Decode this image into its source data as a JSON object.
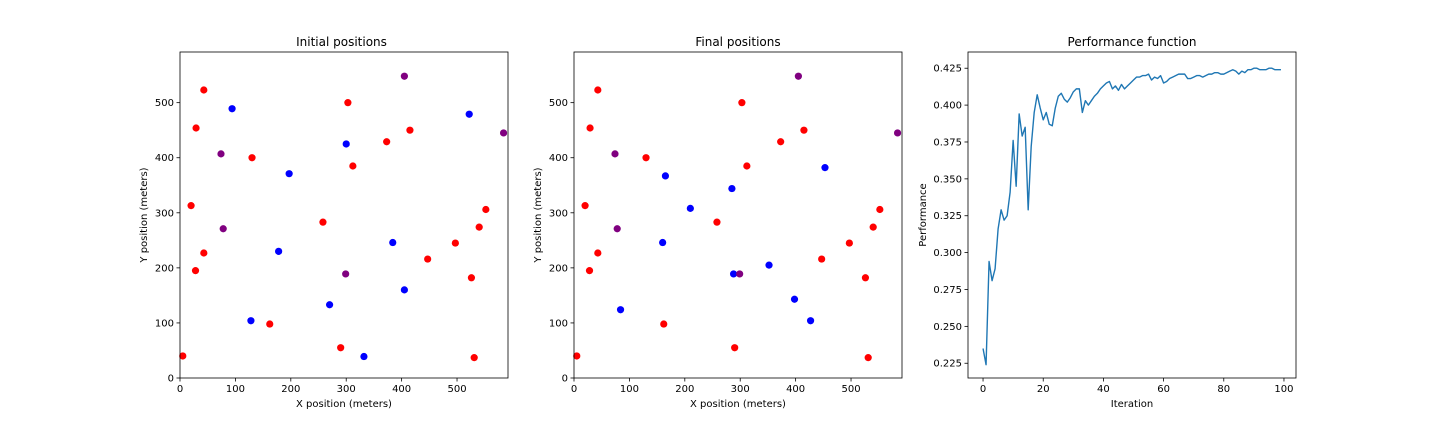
{
  "chart_data": [
    {
      "type": "scatter",
      "title": "Initial positions",
      "xlabel": "X position (meters)",
      "ylabel": "Y position (meters)",
      "xlim": [
        0,
        592
      ],
      "ylim": [
        0,
        592
      ],
      "xticks": [
        0,
        100,
        200,
        300,
        400,
        500
      ],
      "yticks": [
        0,
        100,
        200,
        300,
        400,
        500
      ],
      "points": [
        {
          "x": 5,
          "y": 40,
          "color": "#ff0000"
        },
        {
          "x": 20,
          "y": 313,
          "color": "#ff0000"
        },
        {
          "x": 28,
          "y": 195,
          "color": "#ff0000"
        },
        {
          "x": 29,
          "y": 454,
          "color": "#ff0000"
        },
        {
          "x": 43,
          "y": 523,
          "color": "#ff0000"
        },
        {
          "x": 43,
          "y": 227,
          "color": "#ff0000"
        },
        {
          "x": 74,
          "y": 407,
          "color": "#800080"
        },
        {
          "x": 78,
          "y": 271,
          "color": "#800080"
        },
        {
          "x": 94,
          "y": 489,
          "color": "#0000ff"
        },
        {
          "x": 128,
          "y": 104,
          "color": "#0000ff"
        },
        {
          "x": 130,
          "y": 400,
          "color": "#ff0000"
        },
        {
          "x": 162,
          "y": 98,
          "color": "#ff0000"
        },
        {
          "x": 178,
          "y": 230,
          "color": "#0000ff"
        },
        {
          "x": 197,
          "y": 371,
          "color": "#0000ff"
        },
        {
          "x": 258,
          "y": 283,
          "color": "#ff0000"
        },
        {
          "x": 270,
          "y": 133,
          "color": "#0000ff"
        },
        {
          "x": 290,
          "y": 55,
          "color": "#ff0000"
        },
        {
          "x": 299,
          "y": 189,
          "color": "#800080"
        },
        {
          "x": 300,
          "y": 425,
          "color": "#0000ff"
        },
        {
          "x": 303,
          "y": 500,
          "color": "#ff0000"
        },
        {
          "x": 312,
          "y": 385,
          "color": "#ff0000"
        },
        {
          "x": 332,
          "y": 39,
          "color": "#0000ff"
        },
        {
          "x": 373,
          "y": 429,
          "color": "#ff0000"
        },
        {
          "x": 384,
          "y": 246,
          "color": "#0000ff"
        },
        {
          "x": 405,
          "y": 548,
          "color": "#800080"
        },
        {
          "x": 405,
          "y": 160,
          "color": "#0000ff"
        },
        {
          "x": 415,
          "y": 450,
          "color": "#ff0000"
        },
        {
          "x": 447,
          "y": 216,
          "color": "#ff0000"
        },
        {
          "x": 497,
          "y": 245,
          "color": "#ff0000"
        },
        {
          "x": 522,
          "y": 479,
          "color": "#0000ff"
        },
        {
          "x": 526,
          "y": 182,
          "color": "#ff0000"
        },
        {
          "x": 531,
          "y": 37,
          "color": "#ff0000"
        },
        {
          "x": 540,
          "y": 274,
          "color": "#ff0000"
        },
        {
          "x": 552,
          "y": 306,
          "color": "#ff0000"
        },
        {
          "x": 584,
          "y": 445,
          "color": "#800080"
        }
      ]
    },
    {
      "type": "scatter",
      "title": "Final positions",
      "xlabel": "X position (meters)",
      "ylabel": "Y position (meters)",
      "xlim": [
        0,
        592
      ],
      "ylim": [
        0,
        592
      ],
      "xticks": [
        0,
        100,
        200,
        300,
        400,
        500
      ],
      "yticks": [
        0,
        100,
        200,
        300,
        400,
        500
      ],
      "points": [
        {
          "x": 5,
          "y": 40,
          "color": "#ff0000"
        },
        {
          "x": 20,
          "y": 313,
          "color": "#ff0000"
        },
        {
          "x": 28,
          "y": 195,
          "color": "#ff0000"
        },
        {
          "x": 29,
          "y": 454,
          "color": "#ff0000"
        },
        {
          "x": 43,
          "y": 523,
          "color": "#ff0000"
        },
        {
          "x": 43,
          "y": 227,
          "color": "#ff0000"
        },
        {
          "x": 74,
          "y": 407,
          "color": "#800080"
        },
        {
          "x": 78,
          "y": 271,
          "color": "#800080"
        },
        {
          "x": 84,
          "y": 124,
          "color": "#0000ff"
        },
        {
          "x": 130,
          "y": 400,
          "color": "#ff0000"
        },
        {
          "x": 160,
          "y": 246,
          "color": "#0000ff"
        },
        {
          "x": 162,
          "y": 98,
          "color": "#ff0000"
        },
        {
          "x": 165,
          "y": 367,
          "color": "#0000ff"
        },
        {
          "x": 210,
          "y": 308,
          "color": "#0000ff"
        },
        {
          "x": 258,
          "y": 283,
          "color": "#ff0000"
        },
        {
          "x": 285,
          "y": 344,
          "color": "#0000ff"
        },
        {
          "x": 288,
          "y": 189,
          "color": "#0000ff"
        },
        {
          "x": 290,
          "y": 55,
          "color": "#ff0000"
        },
        {
          "x": 299,
          "y": 189,
          "color": "#800080"
        },
        {
          "x": 303,
          "y": 500,
          "color": "#ff0000"
        },
        {
          "x": 312,
          "y": 385,
          "color": "#ff0000"
        },
        {
          "x": 352,
          "y": 205,
          "color": "#0000ff"
        },
        {
          "x": 373,
          "y": 429,
          "color": "#ff0000"
        },
        {
          "x": 398,
          "y": 143,
          "color": "#0000ff"
        },
        {
          "x": 405,
          "y": 548,
          "color": "#800080"
        },
        {
          "x": 415,
          "y": 450,
          "color": "#ff0000"
        },
        {
          "x": 427,
          "y": 104,
          "color": "#0000ff"
        },
        {
          "x": 447,
          "y": 216,
          "color": "#ff0000"
        },
        {
          "x": 453,
          "y": 382,
          "color": "#0000ff"
        },
        {
          "x": 497,
          "y": 245,
          "color": "#ff0000"
        },
        {
          "x": 526,
          "y": 182,
          "color": "#ff0000"
        },
        {
          "x": 531,
          "y": 37,
          "color": "#ff0000"
        },
        {
          "x": 540,
          "y": 274,
          "color": "#ff0000"
        },
        {
          "x": 552,
          "y": 306,
          "color": "#ff0000"
        },
        {
          "x": 584,
          "y": 445,
          "color": "#800080"
        }
      ]
    },
    {
      "type": "line",
      "title": "Performance function",
      "xlabel": "Iteration",
      "ylabel": "Performance",
      "xlim": [
        -5,
        104
      ],
      "ylim": [
        0.215,
        0.436
      ],
      "xticks": [
        0,
        20,
        40,
        60,
        80,
        100
      ],
      "yticks": [
        0.225,
        0.25,
        0.275,
        0.3,
        0.325,
        0.35,
        0.375,
        0.4,
        0.425
      ],
      "ytick_labels": [
        "0.225",
        "0.250",
        "0.275",
        "0.300",
        "0.325",
        "0.350",
        "0.375",
        "0.400",
        "0.425"
      ],
      "color": "#1f77b4",
      "series": [
        {
          "x": [
            0,
            1,
            2,
            3,
            4,
            5,
            6,
            7,
            8,
            9,
            10,
            11,
            12,
            13,
            14,
            15,
            16,
            17,
            18,
            19,
            20,
            21,
            22,
            23,
            24,
            25,
            26,
            27,
            28,
            29,
            30,
            31,
            32,
            33,
            34,
            35,
            36,
            37,
            38,
            39,
            40,
            41,
            42,
            43,
            44,
            45,
            46,
            47,
            48,
            49,
            50,
            51,
            52,
            53,
            54,
            55,
            56,
            57,
            58,
            59,
            60,
            61,
            62,
            63,
            64,
            65,
            66,
            67,
            68,
            69,
            70,
            71,
            72,
            73,
            74,
            75,
            76,
            77,
            78,
            79,
            80,
            81,
            82,
            83,
            84,
            85,
            86,
            87,
            88,
            89,
            90,
            91,
            92,
            93,
            94,
            95,
            96,
            97,
            98,
            99
          ],
          "y": [
            0.235,
            0.224,
            0.294,
            0.281,
            0.289,
            0.316,
            0.329,
            0.322,
            0.325,
            0.341,
            0.376,
            0.345,
            0.394,
            0.379,
            0.385,
            0.329,
            0.372,
            0.395,
            0.407,
            0.398,
            0.39,
            0.395,
            0.387,
            0.386,
            0.398,
            0.406,
            0.408,
            0.404,
            0.402,
            0.405,
            0.409,
            0.411,
            0.411,
            0.395,
            0.403,
            0.4,
            0.403,
            0.406,
            0.408,
            0.411,
            0.413,
            0.415,
            0.416,
            0.411,
            0.413,
            0.41,
            0.414,
            0.411,
            0.413,
            0.415,
            0.417,
            0.419,
            0.419,
            0.42,
            0.42,
            0.421,
            0.417,
            0.419,
            0.418,
            0.42,
            0.415,
            0.416,
            0.418,
            0.419,
            0.42,
            0.421,
            0.421,
            0.421,
            0.418,
            0.418,
            0.419,
            0.42,
            0.42,
            0.419,
            0.42,
            0.421,
            0.421,
            0.422,
            0.422,
            0.421,
            0.421,
            0.422,
            0.423,
            0.424,
            0.423,
            0.421,
            0.423,
            0.422,
            0.424,
            0.424,
            0.425,
            0.425,
            0.424,
            0.424,
            0.424,
            0.425,
            0.425,
            0.424,
            0.424,
            0.424
          ]
        }
      ]
    }
  ]
}
